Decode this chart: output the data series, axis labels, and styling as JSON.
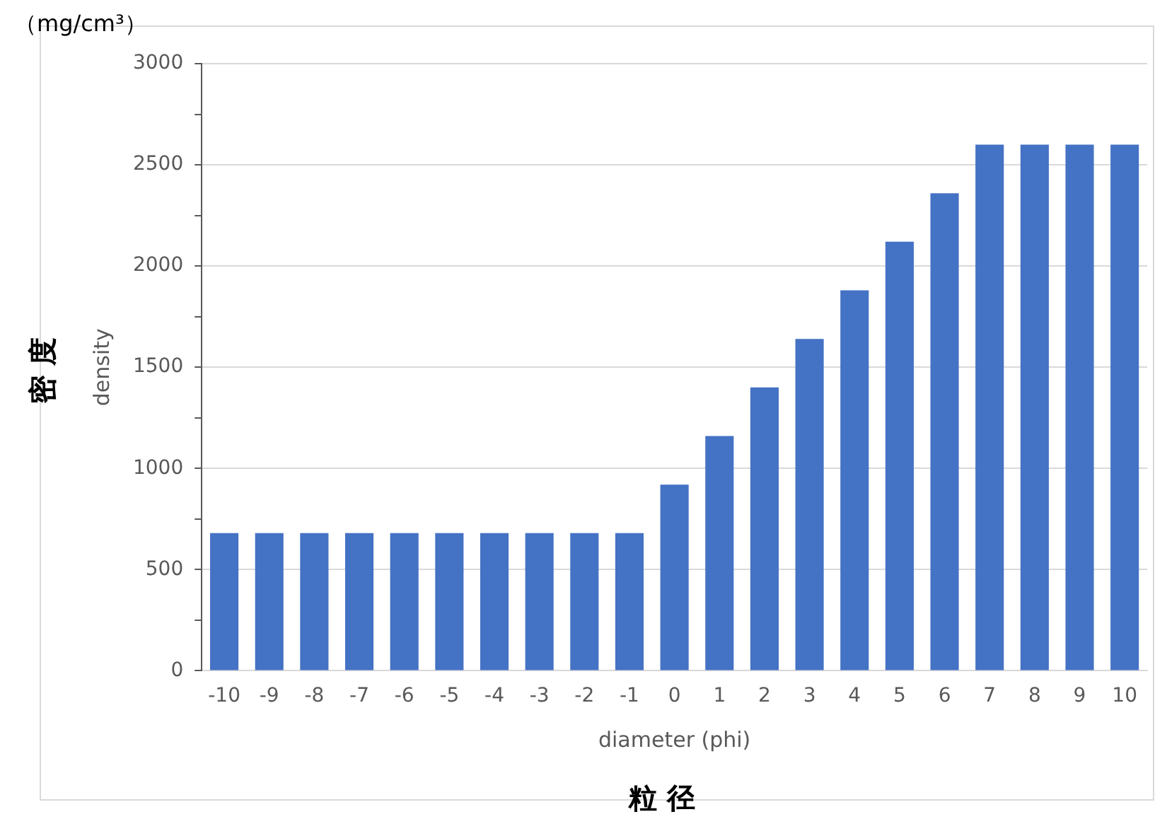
{
  "chart_data": {
    "type": "bar",
    "xlabel": "diameter (phi)",
    "ylabel": "density",
    "annotations": [
      "（mg/cm³）",
      "密 度",
      "粒 径"
    ],
    "categories": [
      "-10",
      "-9",
      "-8",
      "-7",
      "-6",
      "-5",
      "-4",
      "-3",
      "-2",
      "-1",
      "0",
      "1",
      "2",
      "3",
      "4",
      "5",
      "6",
      "7",
      "8",
      "9",
      "10"
    ],
    "values": [
      680,
      680,
      680,
      680,
      680,
      680,
      680,
      680,
      680,
      680,
      920,
      1160,
      1400,
      1640,
      1880,
      2120,
      2360,
      2600,
      2600,
      2600,
      2600
    ],
    "color": "#4472c4",
    "ylim": [
      0,
      3000
    ],
    "yticks": [
      0,
      {
        "value": 250,
        "label": null
      },
      500,
      {
        "value": 750,
        "label": null
      },
      1000,
      {
        "value": 1250,
        "label": null
      },
      1500,
      {
        "value": 1750,
        "label": null
      },
      2000,
      {
        "value": 2250,
        "label": null
      },
      2500,
      {
        "value": 2750,
        "label": null
      },
      3000
    ],
    "grid": "y",
    "legend": false
  }
}
